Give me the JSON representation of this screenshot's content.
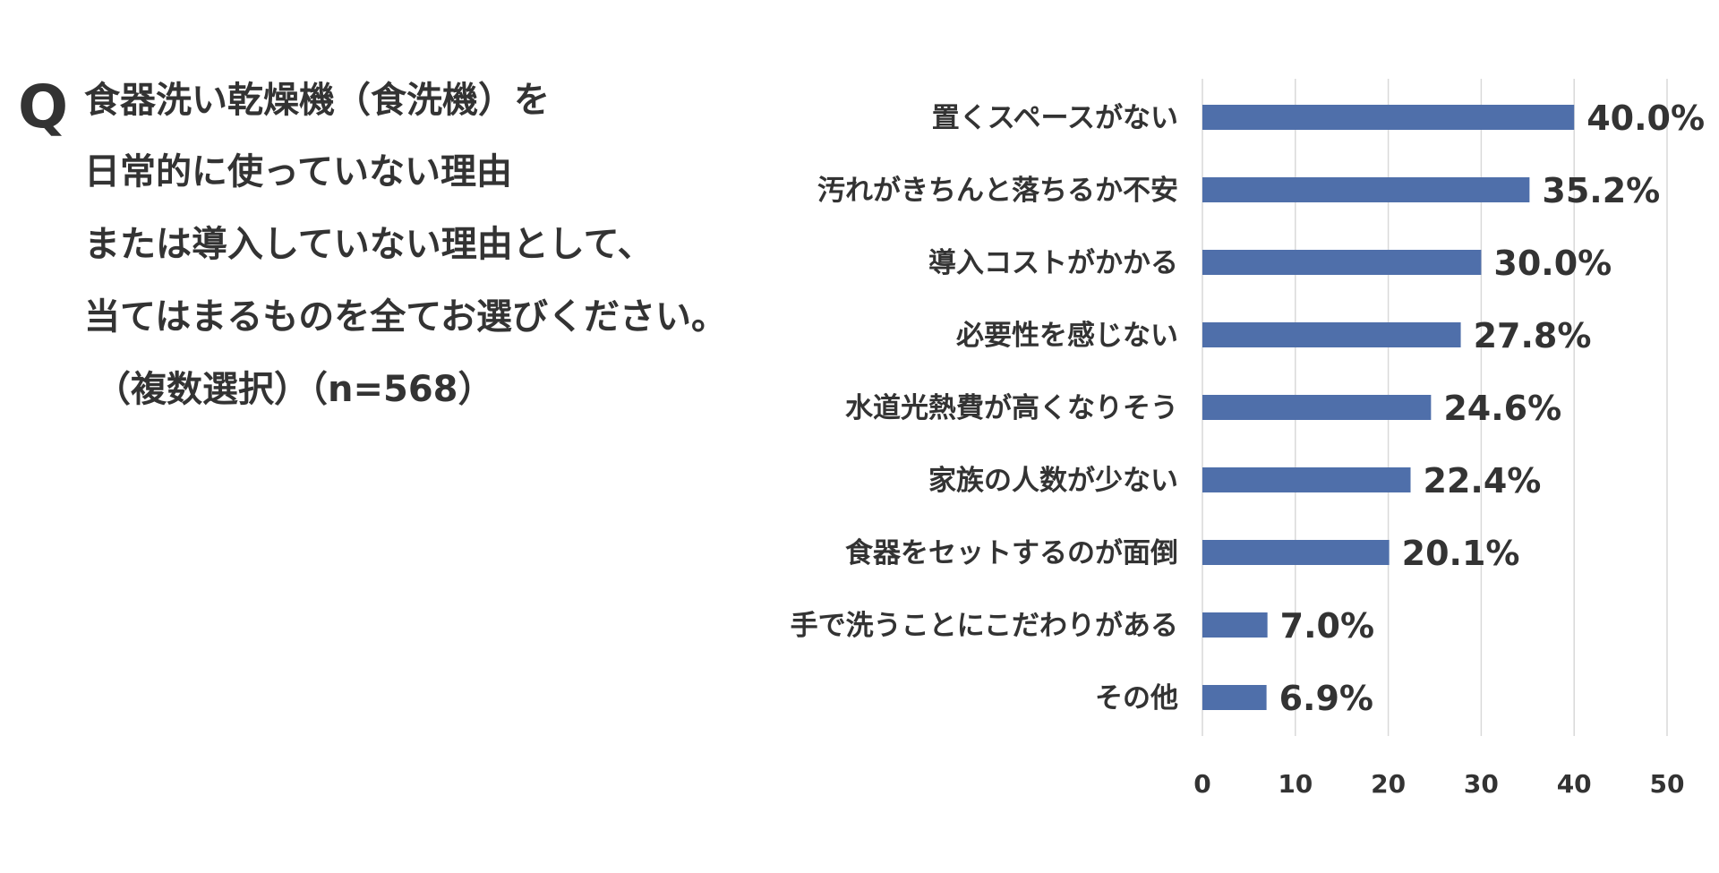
{
  "question": {
    "mark": "Q",
    "lines": [
      "食器洗い乾燥機（食洗機）を",
      "日常的に使っていない理由",
      "または導入していない理由として、",
      "当てはまるものを全てお選びください。",
      "（複数選択）（n=568）"
    ]
  },
  "chart_data": {
    "type": "bar",
    "orientation": "horizontal",
    "categories": [
      "置くスペースがない",
      "汚れがきちんと落ちるか不安",
      "導入コストがかかる",
      "必要性を感じない",
      "水道光熱費が高くなりそう",
      "家族の人数が少ない",
      "食器をセットするのが面倒",
      "手で洗うことにこだわりがある",
      "その他"
    ],
    "values": [
      40.0,
      35.2,
      30.0,
      27.8,
      24.6,
      22.4,
      20.1,
      7.0,
      6.9
    ],
    "data_labels": [
      "40.0%",
      "35.2%",
      "30.0%",
      "27.8%",
      "24.6%",
      "22.4%",
      "20.1%",
      "7.0%",
      "6.9%"
    ],
    "xlim": [
      0,
      50
    ],
    "xticks": [
      0,
      10,
      20,
      30,
      40,
      50
    ],
    "grid": true,
    "legend": "none",
    "bar_color": "#4f6faa",
    "grid_color": "#d9d9d9"
  }
}
